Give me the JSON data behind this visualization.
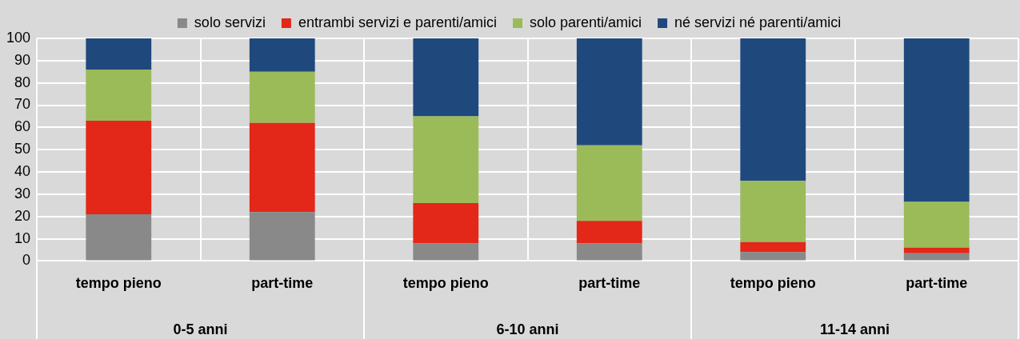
{
  "chart_data": {
    "type": "bar",
    "stacked": true,
    "categories": [
      "tempo pieno",
      "part-time",
      "tempo pieno",
      "part-time",
      "tempo pieno",
      "part-time"
    ],
    "series": [
      {
        "name": "solo servizi",
        "color": "#898989",
        "values": [
          21,
          22,
          8,
          8,
          4,
          3.5
        ]
      },
      {
        "name": "entrambi servizi e parenti/amici",
        "color": "#e32718",
        "values": [
          42,
          40,
          18,
          10,
          4.5,
          2.5
        ]
      },
      {
        "name": "solo parenti/amici",
        "color": "#9bbb59",
        "values": [
          23,
          23,
          39,
          34,
          27.5,
          20.5
        ]
      },
      {
        "name": "né servizi né parenti/amici",
        "color": "#1f497d",
        "values": [
          14,
          15,
          35,
          48,
          64,
          73.5
        ]
      }
    ],
    "ylim": [
      0,
      100
    ],
    "yticks": [
      0,
      10,
      20,
      30,
      40,
      50,
      60,
      70,
      80,
      90,
      100
    ],
    "grid": true,
    "legend": "top",
    "annotations": [
      "0-5 anni",
      "6-10 anni",
      "11-14 anni"
    ]
  }
}
